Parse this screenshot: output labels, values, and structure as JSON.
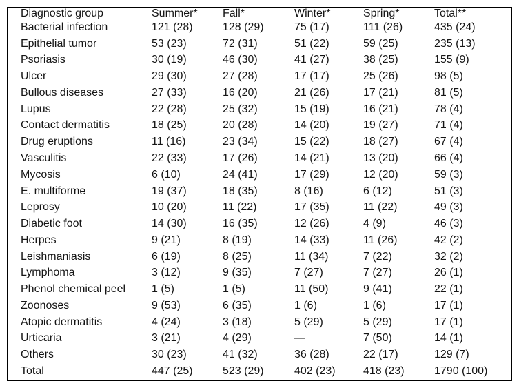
{
  "table": {
    "columns": [
      "Diagnostic group",
      "Summer*",
      "Fall*",
      "Winter*",
      "Spring*",
      "Total**"
    ],
    "rows": [
      [
        "Bacterial infection",
        "121 (28)",
        "128 (29)",
        "75 (17)",
        "111 (26)",
        "435 (24)"
      ],
      [
        "Epithelial tumor",
        "53 (23)",
        "72 (31)",
        "51 (22)",
        "59 (25)",
        "235 (13)"
      ],
      [
        "Psoriasis",
        "30 (19)",
        "46 (30)",
        "41 (27)",
        "38 (25)",
        "155 (9)"
      ],
      [
        "Ulcer",
        "29 (30)",
        "27 (28)",
        "17 (17)",
        "25 (26)",
        "98 (5)"
      ],
      [
        "Bullous diseases",
        "27 (33)",
        "16 (20)",
        "21 (26)",
        "17 (21)",
        "81 (5)"
      ],
      [
        "Lupus",
        "22 (28)",
        "25 (32)",
        "15 (19)",
        "16 (21)",
        "78 (4)"
      ],
      [
        "Contact dermatitis",
        "18 (25)",
        "20 (28)",
        "14 (20)",
        "19 (27)",
        "71 (4)"
      ],
      [
        "Drug eruptions",
        "11 (16)",
        "23 (34)",
        "15 (22)",
        "18 (27)",
        "67 (4)"
      ],
      [
        "Vasculitis",
        "22 (33)",
        "17 (26)",
        "14 (21)",
        "13 (20)",
        "66 (4)"
      ],
      [
        "Mycosis",
        "6 (10)",
        "24 (41)",
        "17 (29)",
        "12 (20)",
        "59 (3)"
      ],
      [
        "E. multiforme",
        "19 (37)",
        "18 (35)",
        "8 (16)",
        "6 (12)",
        "51 (3)"
      ],
      [
        "Leprosy",
        "10 (20)",
        "11 (22)",
        "17 (35)",
        "11 (22)",
        "49 (3)"
      ],
      [
        "Diabetic foot",
        "14 (30)",
        "16 (35)",
        "12 (26)",
        "4 (9)",
        "46 (3)"
      ],
      [
        "Herpes",
        "9 (21)",
        "8 (19)",
        "14 (33)",
        "11 (26)",
        "42 (2)"
      ],
      [
        "Leishmaniasis",
        "6 (19)",
        "8 (25)",
        "11 (34)",
        "7 (22)",
        "32 (2)"
      ],
      [
        "Lymphoma",
        "3 (12)",
        "9 (35)",
        "7 (27)",
        "7 (27)",
        "26 (1)"
      ],
      [
        "Phenol chemical peel",
        "1 (5)",
        "1 (5)",
        "11 (50)",
        "9 (41)",
        "22 (1)"
      ],
      [
        "Zoonoses",
        "9 (53)",
        "6 (35)",
        "1 (6)",
        "1 (6)",
        "17 (1)"
      ],
      [
        "Atopic dermatitis",
        "4 (24)",
        "3 (18)",
        "5 (29)",
        "5 (29)",
        "17 (1)"
      ],
      [
        "Urticaria",
        "3 (21)",
        "4 (29)",
        "—",
        "7 (50)",
        "14 (1)"
      ],
      [
        "Others",
        "30 (23)",
        "41 (32)",
        "36 (28)",
        "22 (17)",
        "129 (7)"
      ],
      [
        "Total",
        "447 (25)",
        "523 (29)",
        "402 (23)",
        "418 (23)",
        "1790 (100)"
      ]
    ]
  },
  "colors": {
    "background": "#ffffff",
    "border": "#000000",
    "text": "#151515"
  }
}
